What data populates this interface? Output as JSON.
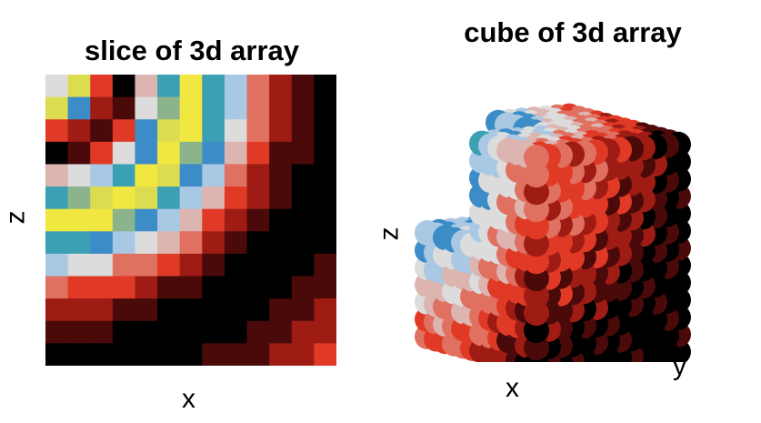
{
  "figure": {
    "left_panel": {
      "title": "slice of 3d array",
      "xlabel": "x",
      "ylabel": "z"
    },
    "right_panel": {
      "title": "cube of 3d array",
      "xlabel": "x",
      "ylabel": "y",
      "zlabel": "z"
    }
  },
  "chart_data": [
    {
      "type": "heatmap",
      "title": "slice of 3d array",
      "xlabel": "x",
      "ylabel": "z",
      "rows": 13,
      "cols": 13,
      "axis_ticks": false,
      "grid": false,
      "colormap": [
        "#000000",
        "#4a0a0a",
        "#9e1c14",
        "#e03a26",
        "#e07060",
        "#dcb4b0",
        "#dcdcdc",
        "#a8c8e4",
        "#3c8cc8",
        "#3ca0b4",
        "#8cb48c",
        "#dcdc50",
        "#f0e840"
      ],
      "values": [
        [
          6,
          11,
          3,
          0,
          5,
          9,
          12,
          9,
          7,
          4,
          2,
          1,
          0
        ],
        [
          11,
          8,
          2,
          1,
          6,
          10,
          12,
          9,
          7,
          4,
          2,
          1,
          0
        ],
        [
          3,
          2,
          1,
          3,
          8,
          11,
          12,
          9,
          6,
          4,
          2,
          1,
          0
        ],
        [
          0,
          1,
          3,
          6,
          8,
          12,
          10,
          8,
          5,
          3,
          1,
          1,
          0
        ],
        [
          5,
          6,
          7,
          9,
          12,
          11,
          8,
          7,
          4,
          2,
          1,
          0,
          0
        ],
        [
          9,
          10,
          11,
          12,
          11,
          9,
          7,
          5,
          3,
          2,
          1,
          0,
          0
        ],
        [
          12,
          12,
          12,
          10,
          8,
          7,
          5,
          3,
          2,
          1,
          0,
          0,
          0
        ],
        [
          9,
          9,
          8,
          7,
          6,
          5,
          4,
          2,
          1,
          0,
          0,
          0,
          0
        ],
        [
          7,
          6,
          6,
          4,
          4,
          3,
          2,
          1,
          0,
          0,
          0,
          0,
          1
        ],
        [
          4,
          3,
          3,
          3,
          2,
          1,
          1,
          0,
          0,
          0,
          0,
          1,
          1
        ],
        [
          2,
          2,
          2,
          1,
          1,
          0,
          0,
          0,
          0,
          0,
          1,
          1,
          2
        ],
        [
          1,
          1,
          1,
          0,
          0,
          0,
          0,
          0,
          0,
          1,
          1,
          2,
          2
        ],
        [
          0,
          0,
          0,
          0,
          0,
          0,
          0,
          1,
          1,
          1,
          2,
          2,
          3
        ]
      ]
    },
    {
      "type": "scatter",
      "subtype": "3d-scatter",
      "title": "cube of 3d array",
      "xlabel": "x",
      "ylabel": "y",
      "zlabel": "z",
      "marker": "sphere",
      "grid_size": 13,
      "cutaway": "front-top-left octant removed, exposing the colored core",
      "colormap": [
        "#000000",
        "#4a0a0a",
        "#9e1c14",
        "#e03a26",
        "#e07060",
        "#dcb4b0",
        "#dcdcdc",
        "#a8c8e4",
        "#3c8cc8",
        "#3ca0b4",
        "#8cb48c",
        "#dcdc50",
        "#f0e840"
      ]
    }
  ]
}
